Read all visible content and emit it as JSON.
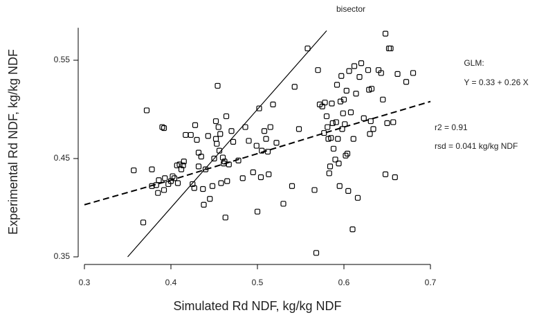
{
  "chart_data": {
    "type": "scatter",
    "x_label": "Simulated Rd NDF, kg/kg NDF",
    "y_label": "Experimental Rd NDF, kg/kg NDF",
    "xlim": [
      0.3,
      0.7
    ],
    "xticks": [
      0.3,
      0.4,
      0.5,
      0.6,
      0.7
    ],
    "ylim": [
      0.35,
      0.583
    ],
    "yticks": [
      0.35,
      0.45,
      0.55
    ],
    "color": "#000000",
    "x": [
      0.357,
      0.368,
      0.372,
      0.378,
      0.378,
      0.383,
      0.385,
      0.386,
      0.39,
      0.392,
      0.392,
      0.393,
      0.397,
      0.4,
      0.402,
      0.404,
      0.407,
      0.408,
      0.41,
      0.412,
      0.414,
      0.415,
      0.417,
      0.423,
      0.425,
      0.427,
      0.428,
      0.43,
      0.432,
      0.432,
      0.435,
      0.437,
      0.438,
      0.44,
      0.443,
      0.445,
      0.448,
      0.45,
      0.452,
      0.452,
      0.453,
      0.454,
      0.455,
      0.456,
      0.457,
      0.458,
      0.46,
      0.461,
      0.462,
      0.463,
      0.464,
      0.465,
      0.467,
      0.47,
      0.472,
      0.478,
      0.483,
      0.486,
      0.49,
      0.495,
      0.499,
      0.5,
      0.502,
      0.504,
      0.505,
      0.508,
      0.51,
      0.512,
      0.513,
      0.515,
      0.518,
      0.522,
      0.53,
      0.54,
      0.543,
      0.548,
      0.558,
      0.566,
      0.568,
      0.57,
      0.572,
      0.575,
      0.577,
      0.578,
      0.58,
      0.581,
      0.582,
      0.583,
      0.584,
      0.585,
      0.586,
      0.587,
      0.588,
      0.59,
      0.591,
      0.592,
      0.593,
      0.594,
      0.595,
      0.596,
      0.597,
      0.598,
      0.599,
      0.6,
      0.601,
      0.602,
      0.603,
      0.604,
      0.605,
      0.606,
      0.608,
      0.61,
      0.611,
      0.612,
      0.614,
      0.616,
      0.618,
      0.62,
      0.623,
      0.628,
      0.629,
      0.63,
      0.631,
      0.632,
      0.634,
      0.64,
      0.643,
      0.645,
      0.648,
      0.648,
      0.65,
      0.652,
      0.654,
      0.657,
      0.659,
      0.662,
      0.672,
      0.68
    ],
    "values": [
      0.438,
      0.385,
      0.499,
      0.422,
      0.439,
      0.423,
      0.415,
      0.428,
      0.482,
      0.481,
      0.418,
      0.43,
      0.424,
      0.427,
      0.432,
      0.43,
      0.443,
      0.425,
      0.444,
      0.439,
      0.443,
      0.447,
      0.474,
      0.474,
      0.424,
      0.42,
      0.484,
      0.469,
      0.442,
      0.456,
      0.452,
      0.419,
      0.403,
      0.439,
      0.473,
      0.409,
      0.422,
      0.45,
      0.488,
      0.47,
      0.465,
      0.524,
      0.482,
      0.458,
      0.475,
      0.425,
      0.451,
      0.445,
      0.447,
      0.39,
      0.493,
      0.427,
      0.444,
      0.478,
      0.467,
      0.448,
      0.43,
      0.482,
      0.468,
      0.436,
      0.463,
      0.396,
      0.501,
      0.431,
      0.458,
      0.478,
      0.47,
      0.457,
      0.434,
      0.482,
      0.505,
      0.466,
      0.404,
      0.422,
      0.523,
      0.48,
      0.562,
      0.418,
      0.354,
      0.54,
      0.505,
      0.503,
      0.476,
      0.507,
      0.493,
      0.482,
      0.47,
      0.435,
      0.442,
      0.471,
      0.506,
      0.486,
      0.46,
      0.449,
      0.487,
      0.525,
      0.47,
      0.445,
      0.422,
      0.508,
      0.534,
      0.48,
      0.496,
      0.51,
      0.485,
      0.453,
      0.519,
      0.455,
      0.417,
      0.539,
      0.497,
      0.378,
      0.47,
      0.544,
      0.516,
      0.41,
      0.533,
      0.547,
      0.491,
      0.54,
      0.52,
      0.475,
      0.488,
      0.521,
      0.48,
      0.54,
      0.537,
      0.51,
      0.577,
      0.434,
      0.486,
      0.562,
      0.562,
      0.487,
      0.431,
      0.536,
      0.528,
      0.537
    ],
    "lines": [
      {
        "label": "bisector",
        "x": [
          0.35,
          0.58
        ],
        "values": [
          0.35,
          0.58
        ],
        "dashed": false
      },
      {
        "x": [
          0.3,
          0.4,
          0.5,
          0.6,
          0.7
        ],
        "values": [
          0.403,
          0.428,
          0.455,
          0.482,
          0.508
        ],
        "dashed": true
      }
    ],
    "annotations": [
      "GLM:",
      "Y = 0.33 + 0.26 X",
      "r2 = 0.91",
      "rsd = 0.041 kg/kg NDF"
    ]
  }
}
